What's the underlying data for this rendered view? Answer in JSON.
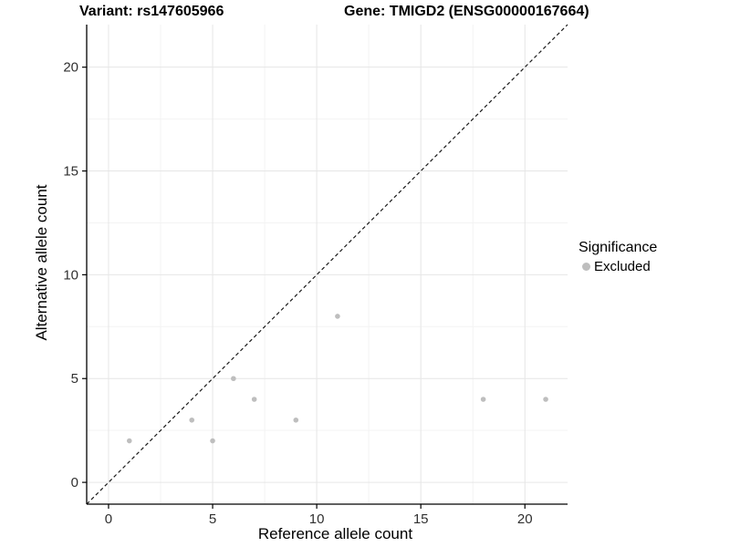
{
  "chart_data": {
    "type": "scatter",
    "titles": {
      "variant": "Variant: rs147605966",
      "gene": "Gene: TMIGD2 (ENSG00000167664)"
    },
    "xlabel": "Reference allele count",
    "ylabel": "Alternative allele count",
    "xlim": [
      -1.05,
      22.05
    ],
    "ylim": [
      -1.05,
      22.05
    ],
    "x_ticks": [
      0,
      5,
      10,
      15,
      20
    ],
    "y_ticks": [
      0,
      5,
      10,
      15,
      20
    ],
    "x_minor_ticks": [
      2.5,
      7.5,
      12.5,
      17.5
    ],
    "y_minor_ticks": [
      2.5,
      7.5,
      12.5,
      17.5
    ],
    "grid": "major+minor",
    "legend": {
      "title": "Significance",
      "position": "right",
      "items": [
        {
          "label": "Excluded",
          "color": "#BEBEBE"
        }
      ]
    },
    "series": [
      {
        "name": "Excluded",
        "color": "#BEBEBE",
        "points": [
          [
            1,
            2
          ],
          [
            4,
            3
          ],
          [
            5,
            2
          ],
          [
            6,
            5
          ],
          [
            7,
            4
          ],
          [
            9,
            3
          ],
          [
            11,
            8
          ],
          [
            18,
            4
          ],
          [
            21,
            4
          ]
        ]
      }
    ],
    "reference_line": {
      "kind": "identity",
      "style": "dashed",
      "color": "#1A1A1A"
    },
    "colors": {
      "point": "#BEBEBE",
      "grid_major": "#E6E6E6",
      "grid_minor": "#F3F3F3",
      "axis_line": "#000000",
      "tick_text": "#303030"
    }
  }
}
